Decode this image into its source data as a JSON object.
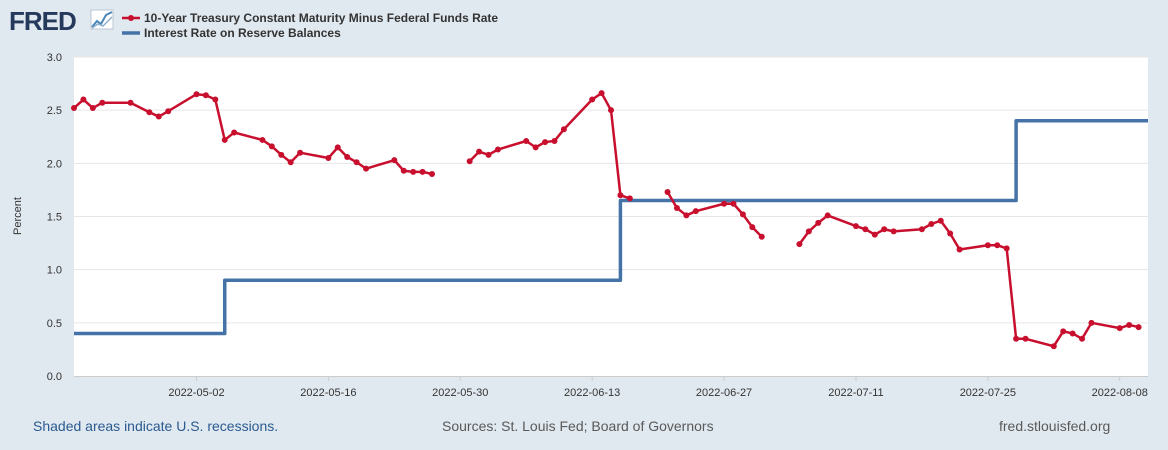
{
  "logo": {
    "text": "FRED"
  },
  "chart_data": {
    "type": "line",
    "title": "",
    "ylabel": "Percent",
    "xlabel": "",
    "ylim": [
      0,
      3
    ],
    "yticks": [
      "0.0",
      "0.5",
      "1.0",
      "1.5",
      "2.0",
      "2.5",
      "3.0"
    ],
    "xlim": [
      "2022-04-19",
      "2022-08-11"
    ],
    "xticks": [
      {
        "date": "2022-05-02",
        "label": "2022-05-02"
      },
      {
        "date": "2022-05-16",
        "label": "2022-05-16"
      },
      {
        "date": "2022-05-30",
        "label": "2022-05-30"
      },
      {
        "date": "2022-06-13",
        "label": "2022-06-13"
      },
      {
        "date": "2022-06-27",
        "label": "2022-06-27"
      },
      {
        "date": "2022-07-11",
        "label": "2022-07-11"
      },
      {
        "date": "2022-07-25",
        "label": "2022-07-25"
      },
      {
        "date": "2022-08-08",
        "label": "2022-08-08"
      }
    ],
    "series": [
      {
        "name": "10-Year Treasury Constant Maturity Minus Federal Funds Rate",
        "color": "#c8102e",
        "markers": true,
        "points": [
          [
            "2022-04-19",
            2.52
          ],
          [
            "2022-04-20",
            2.6
          ],
          [
            "2022-04-21",
            2.52
          ],
          [
            "2022-04-22",
            2.57
          ],
          [
            "2022-04-25",
            2.57
          ],
          [
            "2022-04-27",
            2.48
          ],
          [
            "2022-04-28",
            2.44
          ],
          [
            "2022-04-29",
            2.49
          ],
          [
            "2022-05-02",
            2.65
          ],
          [
            "2022-05-03",
            2.64
          ],
          [
            "2022-05-04",
            2.6
          ],
          [
            "2022-05-05",
            2.22
          ],
          [
            "2022-05-06",
            2.29
          ],
          [
            "2022-05-09",
            2.22
          ],
          [
            "2022-05-10",
            2.16
          ],
          [
            "2022-05-11",
            2.08
          ],
          [
            "2022-05-12",
            2.01
          ],
          [
            "2022-05-13",
            2.1
          ],
          [
            "2022-05-16",
            2.05
          ],
          [
            "2022-05-17",
            2.15
          ],
          [
            "2022-05-18",
            2.06
          ],
          [
            "2022-05-19",
            2.01
          ],
          [
            "2022-05-20",
            1.95
          ],
          [
            "2022-05-23",
            2.03
          ],
          [
            "2022-05-24",
            1.93
          ],
          [
            "2022-05-25",
            1.92
          ],
          [
            "2022-05-26",
            1.92
          ],
          [
            "2022-05-27",
            1.9
          ],
          null,
          [
            "2022-05-31",
            2.02
          ],
          [
            "2022-06-01",
            2.11
          ],
          [
            "2022-06-02",
            2.08
          ],
          [
            "2022-06-03",
            2.13
          ],
          [
            "2022-06-06",
            2.21
          ],
          [
            "2022-06-07",
            2.15
          ],
          [
            "2022-06-08",
            2.2
          ],
          [
            "2022-06-09",
            2.21
          ],
          [
            "2022-06-10",
            2.32
          ],
          [
            "2022-06-13",
            2.6
          ],
          [
            "2022-06-14",
            2.66
          ],
          [
            "2022-06-15",
            2.5
          ],
          [
            "2022-06-16",
            1.7
          ],
          [
            "2022-06-17",
            1.67
          ],
          null,
          [
            "2022-06-21",
            1.73
          ],
          [
            "2022-06-22",
            1.58
          ],
          [
            "2022-06-23",
            1.51
          ],
          [
            "2022-06-24",
            1.55
          ],
          [
            "2022-06-27",
            1.62
          ],
          [
            "2022-06-28",
            1.62
          ],
          [
            "2022-06-29",
            1.52
          ],
          [
            "2022-06-30",
            1.4
          ],
          [
            "2022-07-01",
            1.31
          ],
          null,
          [
            "2022-07-05",
            1.24
          ],
          [
            "2022-07-06",
            1.36
          ],
          [
            "2022-07-07",
            1.44
          ],
          [
            "2022-07-08",
            1.51
          ],
          [
            "2022-07-11",
            1.41
          ],
          [
            "2022-07-12",
            1.38
          ],
          [
            "2022-07-13",
            1.33
          ],
          [
            "2022-07-14",
            1.38
          ],
          [
            "2022-07-15",
            1.36
          ],
          [
            "2022-07-18",
            1.38
          ],
          [
            "2022-07-19",
            1.43
          ],
          [
            "2022-07-20",
            1.46
          ],
          [
            "2022-07-21",
            1.34
          ],
          [
            "2022-07-22",
            1.19
          ],
          [
            "2022-07-25",
            1.23
          ],
          [
            "2022-07-26",
            1.23
          ],
          [
            "2022-07-27",
            1.2
          ],
          [
            "2022-07-28",
            0.35
          ],
          [
            "2022-07-29",
            0.35
          ],
          [
            "2022-08-01",
            0.28
          ],
          [
            "2022-08-02",
            0.42
          ],
          [
            "2022-08-03",
            0.4
          ],
          [
            "2022-08-04",
            0.35
          ],
          [
            "2022-08-05",
            0.5
          ],
          [
            "2022-08-08",
            0.45
          ],
          [
            "2022-08-09",
            0.48
          ],
          [
            "2022-08-10",
            0.46
          ]
        ]
      },
      {
        "name": "Interest Rate on Reserve Balances",
        "color": "#4572a7",
        "markers": false,
        "points": [
          [
            "2022-04-19",
            0.4
          ],
          [
            "2022-05-04",
            0.4
          ],
          [
            "2022-05-05",
            0.9
          ],
          [
            "2022-06-15",
            0.9
          ],
          [
            "2022-06-16",
            1.65
          ],
          [
            "2022-07-27",
            1.65
          ],
          [
            "2022-07-28",
            2.4
          ],
          [
            "2022-08-11",
            2.4
          ]
        ]
      }
    ]
  },
  "footer": {
    "left": "Shaded areas indicate U.S. recessions.",
    "center": "Sources: St. Louis Fed; Board of Governors",
    "right": "fred.stlouisfed.org"
  }
}
